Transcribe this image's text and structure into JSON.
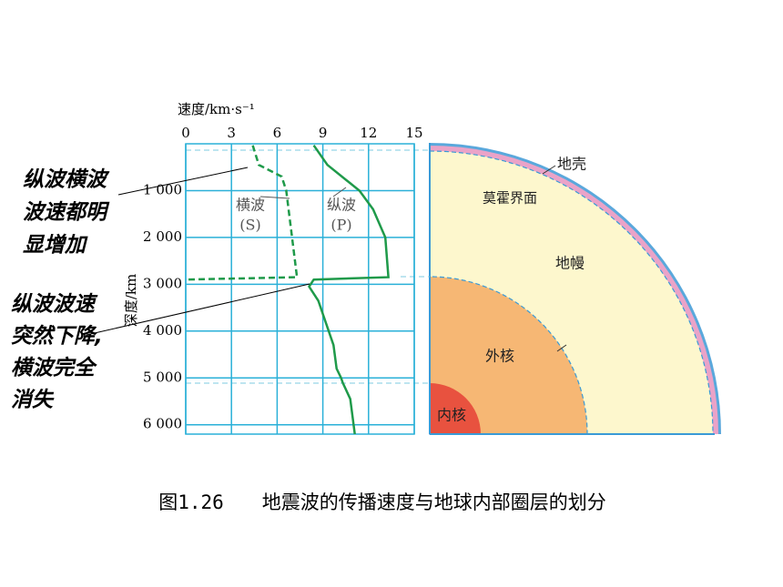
{
  "chart_data": {
    "type": "line",
    "title": "图1.26　　地震波的传播速度与地球内部圈层的划分",
    "xlabel": "速度/km·s⁻¹",
    "ylabel": "深度/km",
    "xlim": [
      0,
      15
    ],
    "xticks": [
      0,
      3,
      6,
      9,
      12,
      15
    ],
    "ylim": [
      0,
      6200
    ],
    "yticks": [
      {
        "value": 1000,
        "label": "1 000"
      },
      {
        "value": 2000,
        "label": "2 000"
      },
      {
        "value": 3000,
        "label": "3 000"
      },
      {
        "value": 4000,
        "label": "4 000"
      },
      {
        "value": 5000,
        "label": "5 000"
      },
      {
        "value": 6000,
        "label": "6 000"
      }
    ],
    "grid": true,
    "series": [
      {
        "name": "横波",
        "label": "(S)",
        "color": "#1f9a4a",
        "dashed": true,
        "x": [
          33,
          450,
          700,
          1000,
          2850,
          2900
        ],
        "values": [
          4.4,
          4.8,
          6.3,
          6.6,
          7.3,
          0
        ]
      },
      {
        "name": "纵波",
        "label": "(P)",
        "color": "#1f9a4a",
        "dashed": false,
        "x": [
          33,
          450,
          1000,
          1400,
          2000,
          2850,
          2900,
          3050,
          3350,
          4300,
          4800,
          5000,
          5100,
          5450,
          6200
        ],
        "values": [
          8.4,
          9.3,
          11.4,
          12.3,
          13.1,
          13.3,
          8.4,
          8.1,
          8.7,
          9.7,
          9.9,
          10.2,
          10.3,
          10.8,
          11.1
        ]
      }
    ],
    "layers": [
      "地壳",
      "莫霍界面",
      "地幔",
      "外核",
      "内核"
    ],
    "annotations": [
      {
        "lines": [
          "纵波横波",
          "波速都明",
          "显增加"
        ]
      },
      {
        "lines": [
          "纵波波速",
          "突然下降,",
          "横波完全",
          "消失"
        ]
      }
    ]
  }
}
